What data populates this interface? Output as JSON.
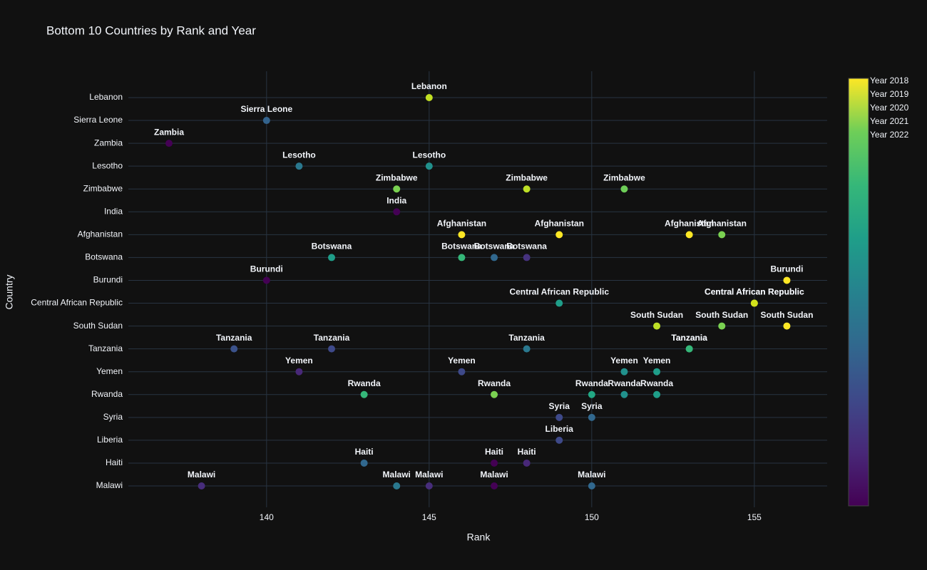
{
  "chart_data": {
    "type": "scatter",
    "title": "Bottom 10 Countries by Rank and Year",
    "x_label": "Rank",
    "y_label": "Country",
    "categories": [
      "Lebanon",
      "Sierra Leone",
      "Zambia",
      "Lesotho",
      "Zimbabwe",
      "India",
      "Afghanistan",
      "Botswana",
      "Burundi",
      "Central African Republic",
      "South Sudan",
      "Tanzania",
      "Yemen",
      "Rwanda",
      "Syria",
      "Liberia",
      "Haiti",
      "Malawi"
    ],
    "xlim": [
      135.75,
      157.24
    ],
    "xticks": [
      140,
      145,
      150,
      155
    ],
    "grid": true,
    "series": [
      {
        "name": "Year 2018",
        "countries": [
          "Zambia",
          "Malawi",
          "Tanzania",
          "Burundi",
          "Sierra Leone",
          "Yemen",
          "Lesotho",
          "Botswana",
          "Haiti",
          "Rwanda"
        ],
        "values": [
          137,
          138,
          139,
          140,
          140,
          141,
          141,
          142,
          143,
          143
        ],
        "colors": [
          "#440154",
          "#472d7b",
          "#3b528b",
          "#440154",
          "#33638d",
          "#482878",
          "#2a788e",
          "#1f9e89",
          "#31688e",
          "#35b779"
        ]
      },
      {
        "name": "Year 2019",
        "countries": [
          "Malawi",
          "India",
          "Zimbabwe",
          "Lesotho",
          "Lebanon",
          "Malawi",
          "Tanzania",
          "Yemen",
          "Botswana",
          "Afghanistan"
        ],
        "values": [
          144,
          144,
          144,
          145,
          145,
          145,
          142,
          146,
          146,
          146
        ],
        "colors": [
          "#2a788e",
          "#440154",
          "#7ad151",
          "#21918c",
          "#c2df23",
          "#472d7b",
          "#3e4989",
          "#3e4989",
          "#35b779",
          "#fde725"
        ]
      },
      {
        "name": "Year 2020",
        "countries": [
          "Haiti",
          "Malawi",
          "Rwanda",
          "Botswana",
          "Zimbabwe",
          "Tanzania",
          "Haiti",
          "Botswana",
          "Afghanistan",
          "Syria"
        ],
        "values": [
          147,
          147,
          147,
          147,
          148,
          148,
          148,
          148,
          149,
          149
        ],
        "colors": [
          "#440154",
          "#440154",
          "#7ad151",
          "#31688e",
          "#bddf26",
          "#2a788e",
          "#482878",
          "#46327e",
          "#fde725",
          "#3e4989"
        ]
      },
      {
        "name": "Year 2021",
        "countries": [
          "Liberia",
          "Central African Republic",
          "Malawi",
          "Syria",
          "Rwanda",
          "Zimbabwe",
          "Yemen",
          "Rwanda",
          "Yemen",
          "Rwanda"
        ],
        "values": [
          149,
          149,
          150,
          150,
          150,
          151,
          151,
          151,
          152,
          152
        ],
        "colors": [
          "#3e4989",
          "#1f9e89",
          "#31688e",
          "#31688e",
          "#22a884",
          "#6ece58",
          "#21918c",
          "#21918c",
          "#1f9e89",
          "#1f9e89"
        ]
      },
      {
        "name": "Year 2022",
        "countries": [
          "South Sudan",
          "Tanzania",
          "Tanzania",
          "Afghanistan",
          "South Sudan",
          "Afghanistan",
          "Central African Republic",
          "Central African Republic",
          "South Sudan",
          "Burundi"
        ],
        "values": [
          152,
          153,
          153,
          153,
          154,
          154,
          155,
          155,
          156,
          156
        ],
        "colors": [
          "#bddf26",
          "#35b779",
          "#35b779",
          "#fde725",
          "#7ad151",
          "#7ad151",
          "#d2e21b",
          "#d2e21b",
          "#fde725",
          "#fde725"
        ]
      }
    ]
  }
}
